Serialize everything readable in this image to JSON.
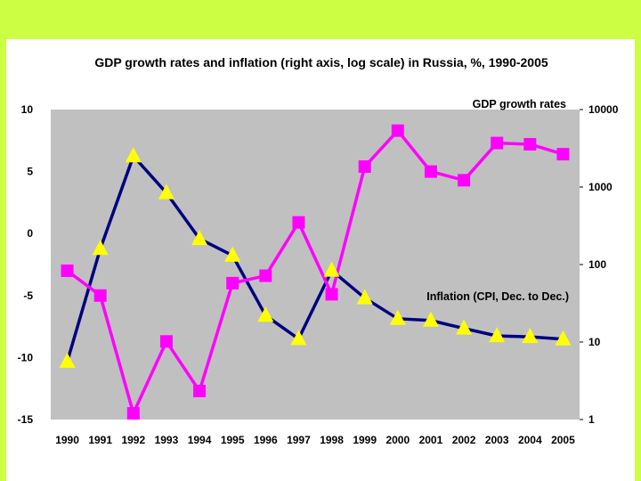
{
  "chart_data": {
    "type": "line",
    "title": "GDP growth rates and inflation (right axis, log scale) in Russia, %, 1990-2005",
    "categories": [
      "1990",
      "1991",
      "1992",
      "1993",
      "1994",
      "1995",
      "1996",
      "1997",
      "1998",
      "1999",
      "2000",
      "2001",
      "2002",
      "2003",
      "2004",
      "2005"
    ],
    "left_axis": {
      "ylim": [
        -15,
        10
      ],
      "ticks": [
        "10",
        "5",
        "0",
        "-5",
        "-10",
        "-15"
      ],
      "tick_values": [
        10,
        5,
        0,
        -5,
        -10,
        -15
      ]
    },
    "right_axis": {
      "scale": "log",
      "ylim": [
        1,
        10000
      ],
      "ticks": [
        "10000",
        "1000",
        "100",
        "10",
        "1"
      ],
      "tick_values": [
        10000,
        1000,
        100,
        10,
        1
      ]
    },
    "series": [
      {
        "name": "GDP growth rates",
        "axis": "left",
        "line_color": "#FF00FF",
        "marker": "square",
        "marker_color": "#FF00FF",
        "values": [
          -3.0,
          -5.0,
          -14.5,
          -8.7,
          -12.7,
          -4.0,
          -3.4,
          0.9,
          -4.9,
          5.4,
          8.3,
          5.0,
          4.3,
          7.3,
          7.2,
          6.4
        ]
      },
      {
        "name": "Inflation (CPI, Dec. to Dec.)",
        "axis": "right",
        "line_color": "#000080",
        "marker": "triangle",
        "marker_color": "#FFFF00",
        "values": [
          5.6,
          160,
          2510,
          840,
          215,
          131,
          22,
          11,
          84,
          37,
          20,
          19,
          15,
          12,
          11.7,
          10.9
        ]
      }
    ],
    "grid": false,
    "plot_background": "#C0C0C0"
  }
}
